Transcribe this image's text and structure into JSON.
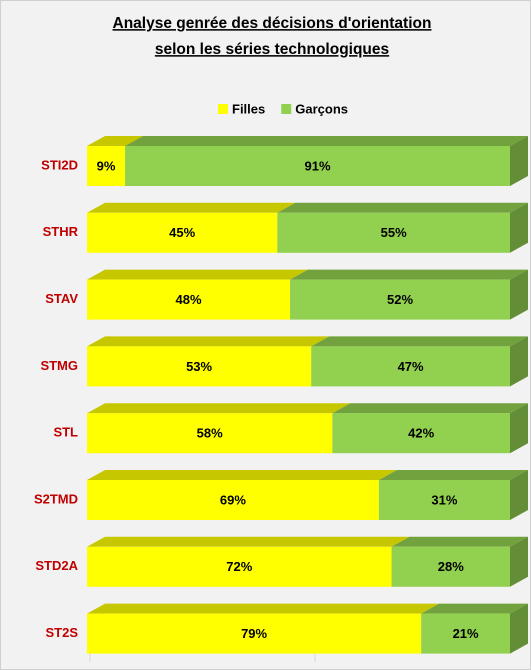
{
  "chart_data": {
    "type": "stacked_barh",
    "title": [
      "Analyse genrée des décisions d'orientation",
      "selon les séries technologiques"
    ],
    "categories": [
      "STI2D",
      "STHR",
      "STAV",
      "STMG",
      "STL",
      "S2TMD",
      "STD2A",
      "ST2S"
    ],
    "series": [
      {
        "name": "Filles",
        "color": "#ffff00",
        "values": [
          9,
          45,
          48,
          53,
          58,
          69,
          72,
          79
        ],
        "value_labels": [
          "9%",
          "45%",
          "48%",
          "53%",
          "58%",
          "69%",
          "72%",
          "79%"
        ]
      },
      {
        "name": "Garçons",
        "color": "#92d050",
        "values": [
          91,
          55,
          52,
          47,
          42,
          31,
          28,
          21
        ],
        "value_labels": [
          "91%",
          "55%",
          "52%",
          "47%",
          "42%",
          "31%",
          "28%",
          "21%"
        ]
      }
    ],
    "xlim": [
      0,
      100
    ],
    "legend": "top"
  }
}
